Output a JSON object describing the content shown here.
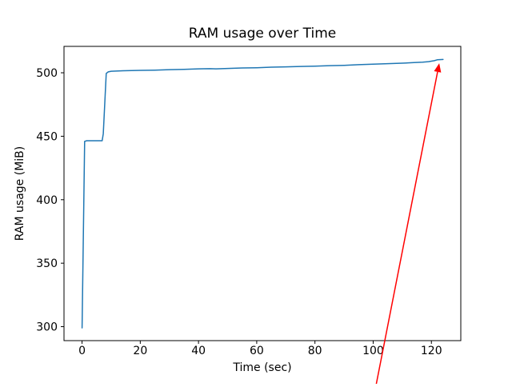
{
  "figure": {
    "background": "#ffffff",
    "text_color": "#000000",
    "spine_color": "#000000"
  },
  "chart_data": {
    "type": "line",
    "title": "RAM usage over Time",
    "xlabel": "Time (sec)",
    "ylabel": "RAM usage (MiB)",
    "x_ticks": [
      0,
      20,
      40,
      60,
      80,
      100,
      120
    ],
    "y_ticks": [
      300,
      350,
      400,
      450,
      500
    ],
    "xlim": [
      -6.2,
      130.1
    ],
    "ylim": [
      289,
      520.8
    ],
    "grid": false,
    "legend": "none",
    "series": [
      {
        "name": "ram-usage",
        "color": "#1f77b4",
        "line_width": 1.5,
        "points": [
          [
            0,
            299
          ],
          [
            0.9,
            446
          ],
          [
            1.6,
            446.5
          ],
          [
            6.9,
            446.5
          ],
          [
            7.3,
            452
          ],
          [
            8.3,
            499.5
          ],
          [
            9,
            500.7
          ],
          [
            10,
            501.2
          ],
          [
            14,
            501.6
          ],
          [
            20,
            501.9
          ],
          [
            25,
            502.1
          ],
          [
            30,
            502.5
          ],
          [
            35,
            502.7
          ],
          [
            40,
            503.1
          ],
          [
            44,
            503.2
          ],
          [
            46,
            503.1
          ],
          [
            50,
            503.4
          ],
          [
            55,
            503.8
          ],
          [
            60,
            504
          ],
          [
            65,
            504.4
          ],
          [
            70,
            504.7
          ],
          [
            75,
            505
          ],
          [
            80,
            505.2
          ],
          [
            85,
            505.6
          ],
          [
            90,
            505.9
          ],
          [
            95,
            506.4
          ],
          [
            100,
            506.8
          ],
          [
            105,
            507.2
          ],
          [
            110,
            507.6
          ],
          [
            114,
            508
          ],
          [
            117,
            508.3
          ],
          [
            119,
            508.8
          ],
          [
            121,
            509.5
          ],
          [
            122,
            510.2
          ],
          [
            124,
            510.5
          ]
        ]
      }
    ],
    "annotation": {
      "type": "arrow",
      "color": "#ff0000",
      "from": [
        101,
        254
      ],
      "to": [
        122.7,
        507.5
      ]
    }
  }
}
